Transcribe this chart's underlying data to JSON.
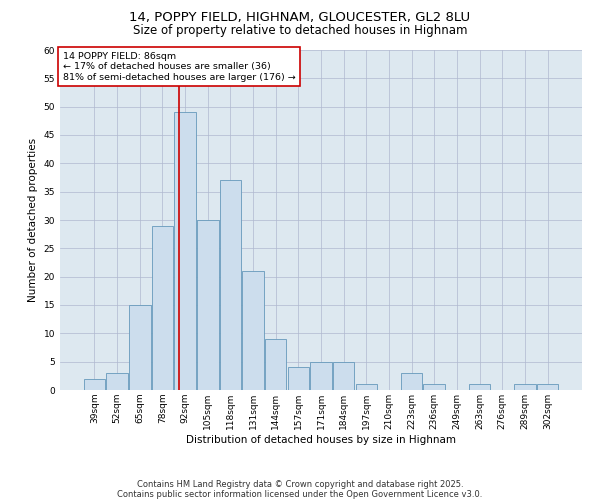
{
  "title_line1": "14, POPPY FIELD, HIGHNAM, GLOUCESTER, GL2 8LU",
  "title_line2": "Size of property relative to detached houses in Highnam",
  "xlabel": "Distribution of detached houses by size in Highnam",
  "ylabel": "Number of detached properties",
  "bar_labels": [
    "39sqm",
    "52sqm",
    "65sqm",
    "78sqm",
    "92sqm",
    "105sqm",
    "118sqm",
    "131sqm",
    "144sqm",
    "157sqm",
    "171sqm",
    "184sqm",
    "197sqm",
    "210sqm",
    "223sqm",
    "236sqm",
    "249sqm",
    "263sqm",
    "276sqm",
    "289sqm",
    "302sqm"
  ],
  "bar_values": [
    2,
    3,
    15,
    29,
    49,
    30,
    37,
    21,
    9,
    4,
    5,
    5,
    1,
    0,
    3,
    1,
    0,
    1,
    0,
    1,
    1
  ],
  "bar_color": "#ccdded",
  "bar_edge_color": "#6699bb",
  "annotation_box_text": "14 POPPY FIELD: 86sqm\n← 17% of detached houses are smaller (36)\n81% of semi-detached houses are larger (176) →",
  "annotation_box_color": "#cc0000",
  "vline_x": 3.75,
  "vline_color": "#cc0000",
  "ylim": [
    0,
    60
  ],
  "yticks": [
    0,
    5,
    10,
    15,
    20,
    25,
    30,
    35,
    40,
    45,
    50,
    55,
    60
  ],
  "grid_color": "#b0b8d0",
  "bg_color": "#dde8f0",
  "footer": "Contains HM Land Registry data © Crown copyright and database right 2025.\nContains public sector information licensed under the Open Government Licence v3.0.",
  "title_fontsize": 9.5,
  "subtitle_fontsize": 8.5,
  "axis_label_fontsize": 7.5,
  "tick_fontsize": 6.5,
  "annotation_fontsize": 6.8,
  "footer_fontsize": 6.0
}
